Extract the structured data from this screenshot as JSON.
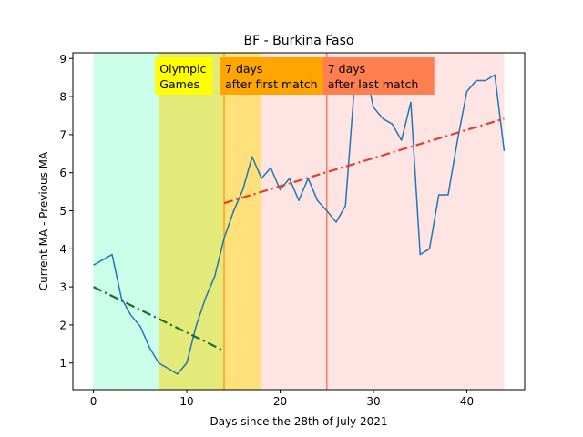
{
  "chart_data": {
    "type": "line",
    "title": "BF - Burkina Faso",
    "xlabel": "Days since the 28th of July 2021",
    "ylabel": "Current MA - Previous MA",
    "xlim": [
      -2.2,
      46.2
    ],
    "ylim": [
      0.3,
      9.15
    ],
    "xticks": [
      0,
      10,
      20,
      30,
      40
    ],
    "yticks": [
      1,
      2,
      3,
      4,
      5,
      6,
      7,
      8,
      9
    ],
    "grid": false,
    "regions": [
      {
        "start": 0,
        "end": 7,
        "color": "#ccffe9"
      },
      {
        "start": 7,
        "end": 14,
        "color": "#e4ea79"
      },
      {
        "start": 14,
        "end": 18,
        "color": "#ffe07a"
      },
      {
        "start": 18,
        "end": 44,
        "color": "#ffe4e4"
      }
    ],
    "vlines": [
      {
        "x": 14,
        "color": "#ff9f1c"
      },
      {
        "x": 25,
        "color": "#ff7f50"
      }
    ],
    "annotations": [
      {
        "label": "Olympic Games",
        "lines": [
          "Olympic",
          "Games"
        ],
        "x": 7,
        "bg": "#ffff00"
      },
      {
        "label": "7 days after first match",
        "lines": [
          "7 days",
          "after first match"
        ],
        "x": 14,
        "bg": "#ffa500"
      },
      {
        "label": "7 days after last match",
        "lines": [
          "7 days",
          "after last match"
        ],
        "x": 25,
        "bg": "#ff7f50"
      }
    ],
    "series": [
      {
        "color": "#1f77b4",
        "style": "solid",
        "x": [
          0,
          1,
          2,
          3,
          4,
          5,
          6,
          7,
          8,
          9,
          10,
          11,
          12,
          13,
          14,
          15,
          16,
          17,
          18,
          19,
          20,
          21,
          22,
          23,
          24,
          25,
          26,
          27,
          28,
          29,
          30,
          31,
          32,
          33,
          34,
          35,
          36,
          37,
          38,
          39,
          40,
          41,
          42,
          43,
          44
        ],
        "y": [
          3.57,
          3.71,
          3.85,
          2.7,
          2.26,
          1.97,
          1.41,
          1.0,
          0.86,
          0.71,
          1.0,
          1.97,
          2.7,
          3.28,
          4.28,
          4.98,
          5.55,
          6.42,
          5.85,
          6.13,
          5.55,
          5.85,
          5.27,
          5.85,
          5.27,
          5.0,
          4.7,
          5.13,
          8.42,
          8.85,
          7.72,
          7.42,
          7.28,
          6.85,
          7.85,
          3.85,
          4.0,
          5.42,
          5.42,
          6.85,
          8.13,
          8.42,
          8.42,
          8.57,
          6.57
        ]
      },
      {
        "color": "#1a6a2a",
        "style": "dashdot",
        "x": [
          0,
          14
        ],
        "y": [
          3.0,
          1.32
        ]
      },
      {
        "color": "#e0402a",
        "style": "dashdot",
        "x": [
          14,
          44
        ],
        "y": [
          5.2,
          7.42
        ]
      }
    ]
  }
}
